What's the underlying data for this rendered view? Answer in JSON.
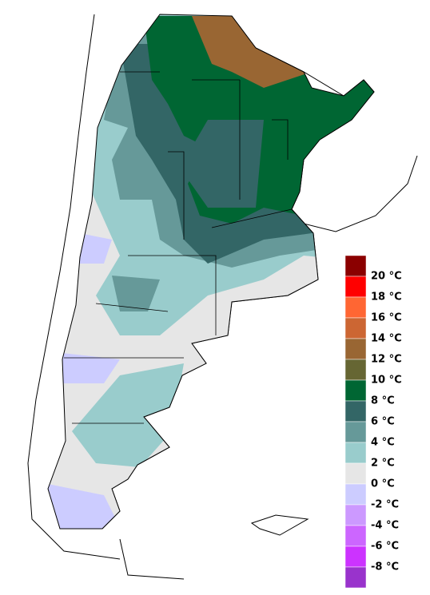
{
  "legend": {
    "colors": [
      "#8b0000",
      "#ff0000",
      "#ff6633",
      "#cc6633",
      "#996633",
      "#666633",
      "#006633",
      "#336666",
      "#669999",
      "#99cccc",
      "#e6e6e6",
      "#ccccff",
      "#cc99ff",
      "#cc66ff",
      "#cc33ff",
      "#9933cc"
    ],
    "labels": [
      "20 °C",
      "18 °C",
      "16 °C",
      "14 °C",
      "12 °C",
      "10 °C",
      "8 °C",
      "6 °C",
      "4 °C",
      "2 °C",
      "0 °C",
      "-2 °C",
      "-4 °C",
      "-6 °C",
      "-8 °C"
    ]
  }
}
